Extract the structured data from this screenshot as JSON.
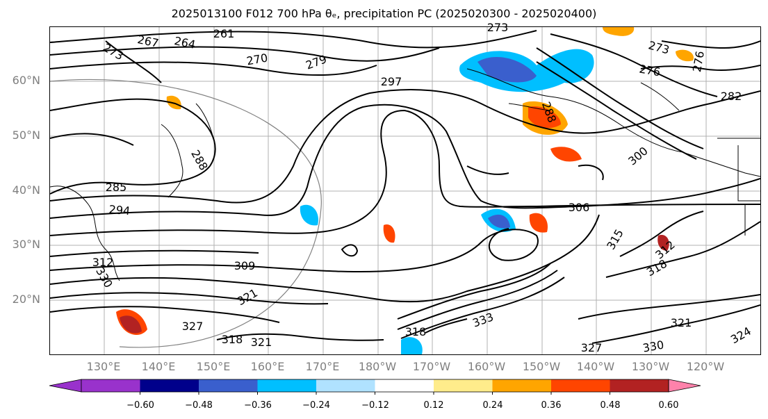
{
  "title": "2025013100 F012 700 hPa θₑ, precipitation PC (2025020300 - 2025020400)",
  "map": {
    "lat_labels": [
      "60°N",
      "50°N",
      "40°N",
      "30°N",
      "20°N"
    ],
    "lon_labels": [
      "130°E",
      "140°E",
      "150°E",
      "160°E",
      "170°E",
      "180°W",
      "170°W",
      "160°W",
      "150°W",
      "140°W",
      "130°W",
      "120°W"
    ],
    "contour_labels": [
      "261",
      "264",
      "267",
      "270",
      "273",
      "273",
      "273",
      "276",
      "276",
      "279",
      "282",
      "285",
      "288",
      "288",
      "294",
      "297",
      "300",
      "306",
      "309",
      "312",
      "312",
      "315",
      "318",
      "318",
      "318",
      "321",
      "321",
      "321",
      "324",
      "327",
      "327",
      "330",
      "330",
      "333"
    ]
  },
  "colorbar": {
    "ticks": [
      "−0.60",
      "−0.48",
      "−0.36",
      "−0.24",
      "−0.12",
      "0.12",
      "0.24",
      "0.36",
      "0.48",
      "0.60"
    ],
    "colors": [
      "#9932cc",
      "#00008b",
      "#3a5fcd",
      "#00bfff",
      "#b0e2ff",
      "#ffffff",
      "#ffec8b",
      "#ffa500",
      "#ff4500",
      "#b22222",
      "#ff82ab"
    ]
  }
}
